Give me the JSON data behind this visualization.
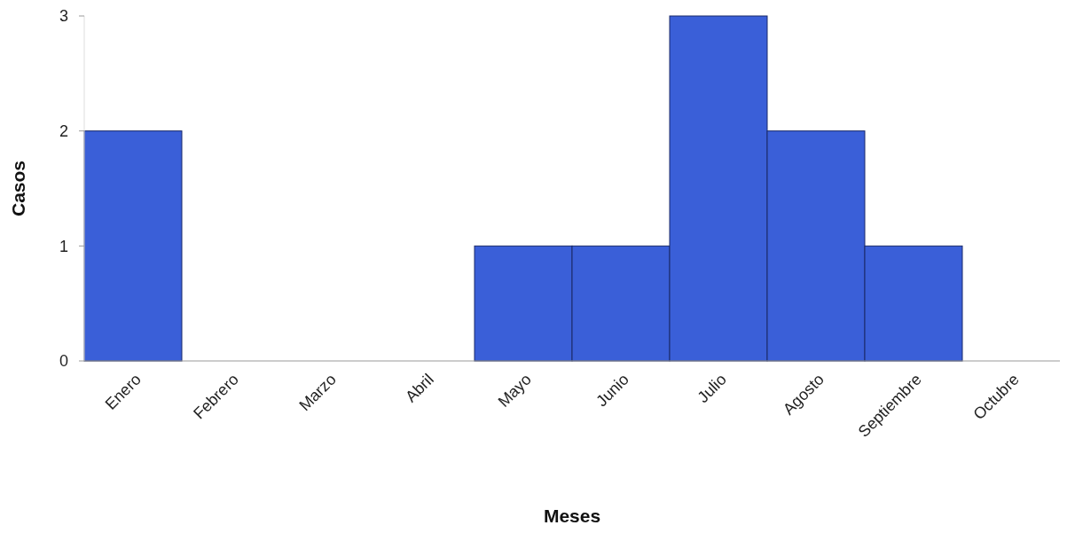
{
  "chart_data": {
    "type": "bar",
    "xlabel": "Meses",
    "ylabel": "Casos",
    "categories": [
      "Enero",
      "Febrero",
      "Marzo",
      "Abril",
      "Mayo",
      "Junio",
      "Julio",
      "Agosto",
      "Septiembre",
      "Octubre"
    ],
    "values": [
      2,
      0,
      0,
      0,
      1,
      1,
      3,
      2,
      1,
      0
    ],
    "color": "#3a5fd8",
    "ylim": [
      0,
      3
    ],
    "yticks": [
      0,
      1,
      2,
      3
    ]
  }
}
